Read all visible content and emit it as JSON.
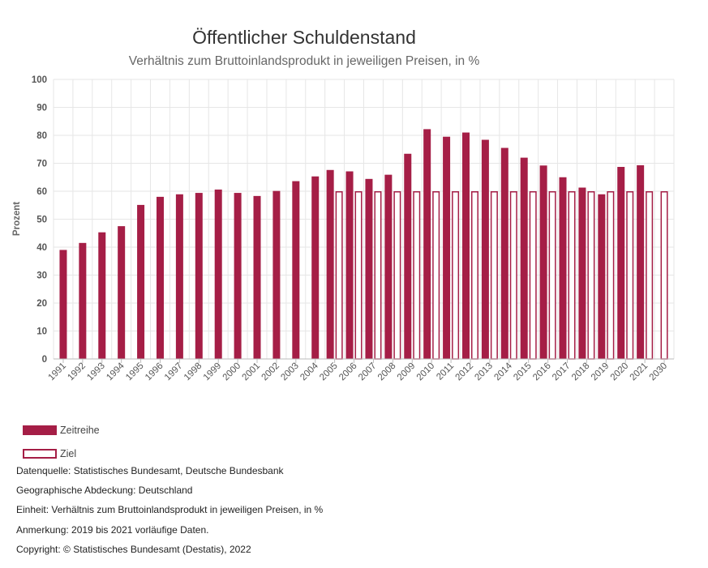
{
  "colors": {
    "series": "#a51e46",
    "grid": "#e6e6e6",
    "axis": "#bbbbbb"
  },
  "chart_data": {
    "type": "bar",
    "title": "Öffentlicher Schuldenstand",
    "subtitle": "Verhältnis zum Bruttoinlandsprodukt in jeweiligen Preisen, in %",
    "xlabel": "",
    "ylabel": "Prozent",
    "ylim": [
      0,
      100
    ],
    "yticks": [
      0,
      10,
      20,
      30,
      40,
      50,
      60,
      70,
      80,
      90,
      100
    ],
    "categories": [
      "1991",
      "1992",
      "1993",
      "1994",
      "1995",
      "1996",
      "1997",
      "1998",
      "1999",
      "2000",
      "2001",
      "2002",
      "2003",
      "2004",
      "2005",
      "2006",
      "2007",
      "2008",
      "2009",
      "2010",
      "2011",
      "2012",
      "2013",
      "2014",
      "2015",
      "2016",
      "2017",
      "2018",
      "2019",
      "2020",
      "2021",
      "2030"
    ],
    "series": [
      {
        "name": "Zeitreihe",
        "style": "solid",
        "values": [
          39.0,
          41.5,
          45.3,
          47.5,
          55.1,
          58.0,
          58.9,
          59.4,
          60.6,
          59.4,
          58.3,
          60.1,
          63.6,
          65.3,
          67.6,
          67.1,
          64.4,
          65.9,
          73.4,
          82.2,
          79.5,
          81.0,
          78.4,
          75.5,
          72.0,
          69.2,
          65.0,
          61.3,
          58.9,
          68.7,
          69.3,
          null
        ]
      },
      {
        "name": "Ziel",
        "style": "outline",
        "values": [
          null,
          null,
          null,
          null,
          null,
          null,
          null,
          null,
          null,
          null,
          null,
          null,
          null,
          null,
          60,
          60,
          60,
          60,
          60,
          60,
          60,
          60,
          60,
          60,
          60,
          60,
          60,
          60,
          60,
          60,
          60,
          60
        ]
      }
    ]
  },
  "legend": {
    "items": [
      {
        "label": "Zeitreihe"
      },
      {
        "label": "Ziel"
      }
    ]
  },
  "notes": {
    "source": "Datenquelle: Statistisches Bundesamt, Deutsche Bundesbank",
    "coverage": "Geographische Abdeckung: Deutschland",
    "unit": "Einheit: Verhältnis zum Bruttoinlandsprodukt in jeweiligen Preisen, in %",
    "remark": "Anmerkung: 2019 bis 2021 vorläufige Daten.",
    "copyright": "Copyright: © Statistisches Bundesamt (Destatis), 2022"
  }
}
